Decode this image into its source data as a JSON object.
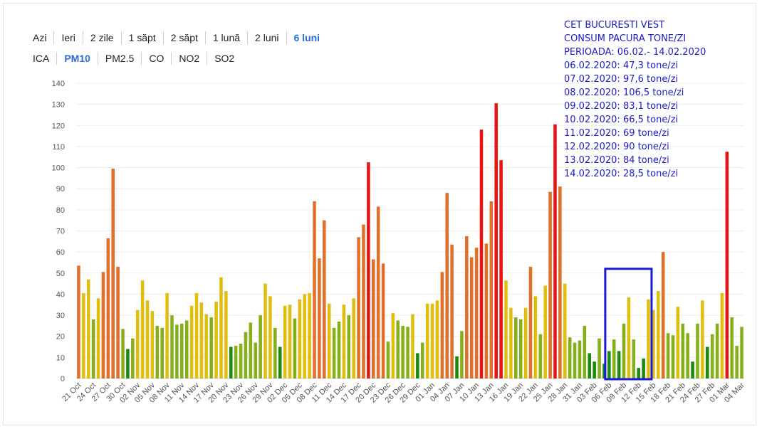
{
  "tabs": {
    "periods": [
      {
        "label": "Azi",
        "active": false
      },
      {
        "label": "Ieri",
        "active": false
      },
      {
        "label": "2 zile",
        "active": false
      },
      {
        "label": "1 săpt",
        "active": false
      },
      {
        "label": "2 săpt",
        "active": false
      },
      {
        "label": "1 lună",
        "active": false
      },
      {
        "label": "2 luni",
        "active": false
      },
      {
        "label": "6 luni",
        "active": true
      }
    ],
    "pollutants": [
      {
        "label": "ICA",
        "active": false
      },
      {
        "label": "PM10",
        "active": true
      },
      {
        "label": "PM2.5",
        "active": false
      },
      {
        "label": "CO",
        "active": false
      },
      {
        "label": "NO2",
        "active": false
      },
      {
        "label": "SO2",
        "active": false
      }
    ]
  },
  "annotation": {
    "lines": [
      "CET BUCURESTI VEST",
      "CONSUM PACURA TONE/ZI",
      "PERIOADA: 06.02.- 14.02.2020",
      "06.02.2020: 47,3 tone/zi",
      "07.02.2020: 97,6 tone/zi",
      "08.02.2020: 106,5 tone/zi",
      "09.02.2020: 83,1 tone/zi",
      "10.02.2020: 66,5 tone/zi",
      "11.02.2020: 69 tone/zi",
      "12.02.2020: 90 tone/zi",
      "13.02.2020: 84 tone/zi",
      "14.02.2020: 28,5 tone/zi"
    ],
    "box_color": "#1a1ad6",
    "text_color": "#1c1cc8",
    "highlight_range": [
      "06 Feb",
      "14 Feb"
    ]
  },
  "chart_data": {
    "type": "bar",
    "title": "",
    "xlabel": "",
    "ylabel": "",
    "ylim": [
      0,
      140
    ],
    "yticks": [
      0,
      10,
      20,
      30,
      40,
      50,
      60,
      70,
      80,
      90,
      100,
      110,
      120,
      130,
      140
    ],
    "grid": true,
    "start_date": "2019-10-21",
    "tick_labels": [
      "21 Oct",
      "24 Oct",
      "27 Oct",
      "30 Oct",
      "02 Nov",
      "05 Nov",
      "08 Nov",
      "11 Nov",
      "14 Nov",
      "17 Nov",
      "20 Nov",
      "23 Nov",
      "26 Nov",
      "29 Nov",
      "02 Dec",
      "05 Dec",
      "08 Dec",
      "11 Dec",
      "14 Dec",
      "17 Dec",
      "20 Dec",
      "23 Dec",
      "26 Dec",
      "29 Dec",
      "01 Jan",
      "04 Jan",
      "07 Jan",
      "10 Jan",
      "13 Jan",
      "16 Jan",
      "19 Jan",
      "22 Jan",
      "25 Jan",
      "28 Jan",
      "31 Jan",
      "03 Feb",
      "06 Feb",
      "09 Feb",
      "12 Feb",
      "15 Feb",
      "18 Feb",
      "21 Feb",
      "24 Feb",
      "27 Feb",
      "01 Mar",
      "04 Mar"
    ],
    "values": [
      53.5,
      40.5,
      47,
      28,
      38,
      50.5,
      66.5,
      99.5,
      53,
      23.5,
      14,
      19,
      32.5,
      46.5,
      37,
      32,
      25,
      24,
      40.5,
      30,
      25.5,
      26,
      27.5,
      34.5,
      40.5,
      36,
      30.5,
      29,
      36.5,
      48,
      41.5,
      15,
      15.5,
      16.5,
      22,
      26.5,
      17,
      30,
      45,
      39,
      24,
      15,
      34.5,
      35,
      28.5,
      37.5,
      40,
      40.5,
      84,
      57,
      75,
      35.5,
      24,
      27,
      35,
      30,
      38,
      67,
      73,
      102.5,
      56.5,
      81.5,
      54.5,
      17.5,
      31,
      27.5,
      25,
      24.5,
      30.5,
      12,
      17,
      35.5,
      35.5,
      37,
      50.5,
      88,
      63.5,
      10.5,
      22.5,
      67.5,
      57.5,
      62,
      118,
      64,
      84,
      130.5,
      103.5,
      46.5,
      33.5,
      29,
      28,
      33.5,
      53,
      39,
      21,
      44,
      88.5,
      120.5,
      91,
      45,
      19.5,
      17,
      18,
      25,
      12,
      8,
      19,
      7,
      13,
      18.5,
      13,
      26,
      38.5,
      18.5,
      5,
      9.5,
      37.5,
      32.5,
      41.5,
      60,
      21.5,
      20.5,
      34,
      26,
      21.5,
      8,
      26,
      37,
      15,
      21,
      26,
      40.5,
      107.5,
      29,
      15.5,
      24.5
    ],
    "colors": {
      "low": "#1d8a0d",
      "good": "#86b01a",
      "moderate": "#e1be0e",
      "high": "#e0702a",
      "very_high": "#e81412"
    },
    "thresholds": [
      15,
      30,
      50,
      100
    ]
  }
}
